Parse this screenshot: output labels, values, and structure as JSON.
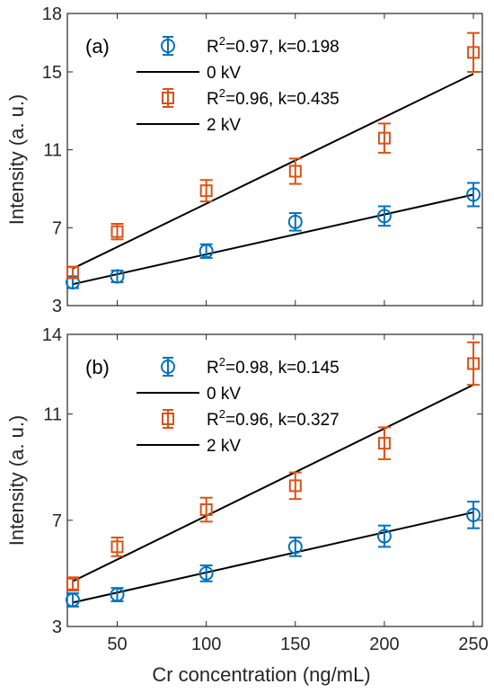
{
  "chart_data": [
    {
      "type": "scatter",
      "panel_label": "(a)",
      "ylabel": "Intensity (a. u.)",
      "xlabel": "",
      "xlim": [
        22,
        255
      ],
      "ylim": [
        3,
        18
      ],
      "xticks": [
        50,
        100,
        150,
        200,
        250
      ],
      "xticks_labeled": false,
      "yticks": [
        3,
        7,
        11,
        15,
        18
      ],
      "legend_position": "top-left",
      "series": [
        {
          "name": "R2=0.97, k=0.198",
          "marker": "circle",
          "color": "#0072BD",
          "x": [
            25,
            50,
            100,
            150,
            200,
            250
          ],
          "y": [
            4.2,
            4.5,
            5.8,
            7.3,
            7.6,
            8.7
          ],
          "err": [
            0.3,
            0.3,
            0.35,
            0.45,
            0.5,
            0.6
          ]
        },
        {
          "name": "R2=0.96, k=0.435",
          "marker": "square",
          "color": "#D95319",
          "x": [
            25,
            50,
            100,
            150,
            200,
            250
          ],
          "y": [
            4.7,
            6.8,
            8.9,
            9.9,
            11.6,
            16.0
          ],
          "err": [
            0.3,
            0.4,
            0.55,
            0.65,
            0.75,
            1.0
          ]
        }
      ],
      "fit_lines": [
        {
          "name": "0 kV",
          "x": [
            25,
            250
          ],
          "y": [
            4.1,
            8.7
          ],
          "color": "#000000"
        },
        {
          "name": "2 kV",
          "x": [
            25,
            250
          ],
          "y": [
            4.9,
            14.9
          ],
          "color": "#000000"
        }
      ],
      "legend": [
        {
          "kind": "marker",
          "series": 0,
          "prefix": "R",
          "sup": "2",
          "suffix": "=0.97, k=0.198"
        },
        {
          "kind": "line",
          "line": 0,
          "text": "0 kV"
        },
        {
          "kind": "marker",
          "series": 1,
          "prefix": "R",
          "sup": "2",
          "suffix": "=0.96, k=0.435"
        },
        {
          "kind": "line",
          "line": 1,
          "text": "2 kV"
        }
      ]
    },
    {
      "type": "scatter",
      "panel_label": "(b)",
      "ylabel": "Intensity (a. u.)",
      "xlabel": "Cr concentration (ng/mL)",
      "xlim": [
        22,
        255
      ],
      "ylim": [
        3,
        14
      ],
      "xticks": [
        50,
        100,
        150,
        200,
        250
      ],
      "xticks_labeled": true,
      "yticks": [
        3,
        7,
        11,
        14
      ],
      "legend_position": "top-left",
      "series": [
        {
          "name": "R2=0.98, k=0.145",
          "marker": "circle",
          "color": "#0072BD",
          "x": [
            25,
            50,
            100,
            150,
            200,
            250
          ],
          "y": [
            4.0,
            4.2,
            5.0,
            6.0,
            6.4,
            7.2
          ],
          "err": [
            0.25,
            0.25,
            0.3,
            0.35,
            0.4,
            0.5
          ]
        },
        {
          "name": "R2=0.96, k=0.327",
          "marker": "square",
          "color": "#D95319",
          "x": [
            25,
            50,
            100,
            150,
            200,
            250
          ],
          "y": [
            4.6,
            6.0,
            7.4,
            8.3,
            9.9,
            12.9
          ],
          "err": [
            0.25,
            0.35,
            0.45,
            0.5,
            0.6,
            0.8
          ]
        }
      ],
      "fit_lines": [
        {
          "name": "0 kV",
          "x": [
            25,
            250
          ],
          "y": [
            3.9,
            7.3
          ],
          "color": "#000000"
        },
        {
          "name": "2 kV",
          "x": [
            25,
            250
          ],
          "y": [
            4.7,
            12.1
          ],
          "color": "#000000"
        }
      ],
      "legend": [
        {
          "kind": "marker",
          "series": 0,
          "prefix": "R",
          "sup": "2",
          "suffix": "=0.98, k=0.145"
        },
        {
          "kind": "line",
          "line": 0,
          "text": "0 kV"
        },
        {
          "kind": "marker",
          "series": 1,
          "prefix": "R",
          "sup": "2",
          "suffix": "=0.96, k=0.327"
        },
        {
          "kind": "line",
          "line": 1,
          "text": "2 kV"
        }
      ]
    }
  ]
}
